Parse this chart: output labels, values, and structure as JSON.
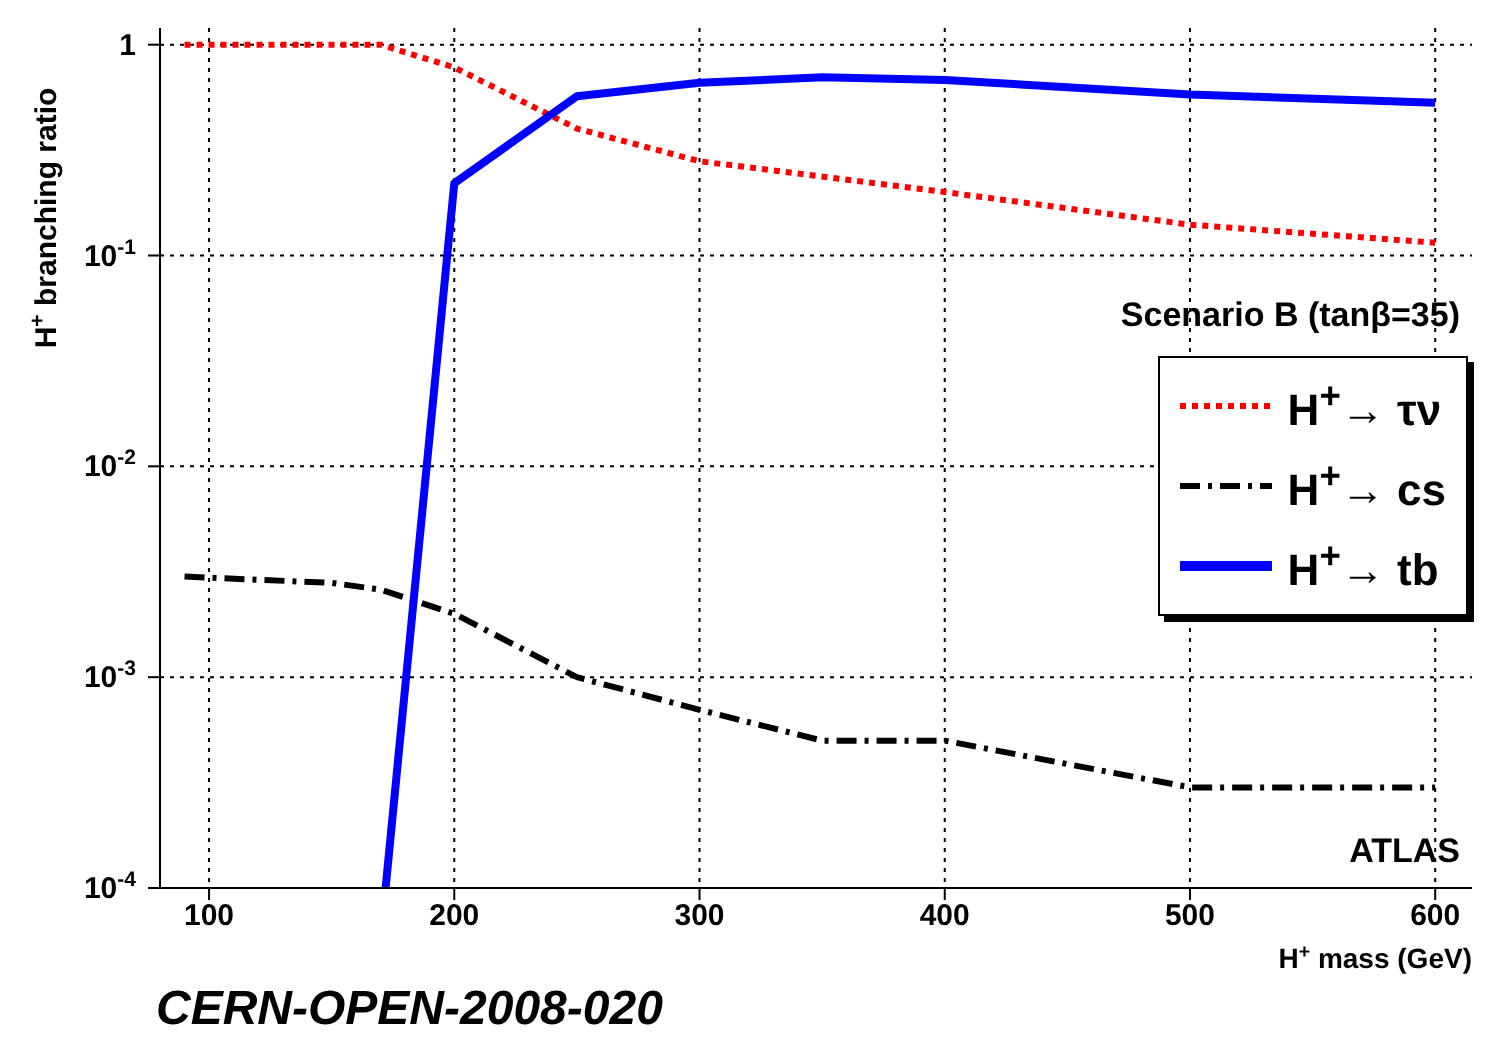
{
  "chart_data": {
    "type": "line",
    "xlabel": "H$^{+}$ mass (GeV)",
    "ylabel": "H$^{+}$ branching ratio",
    "log": "y",
    "grid": true,
    "legend": "right",
    "xlim": [
      80,
      615
    ],
    "xticks": [
      100,
      200,
      300,
      400,
      500,
      600
    ],
    "ylim": [
      0.0001,
      1.2
    ],
    "yticks": [
      {
        "value": 0.0001,
        "label": "10$^{-4}$"
      },
      {
        "value": 0.001,
        "label": "10$^{-3}$"
      },
      {
        "value": 0.01,
        "label": "10$^{-2}$"
      },
      {
        "value": 0.1,
        "label": "10$^{-1}$"
      },
      1
    ],
    "series": [
      {
        "name": "H$^{+}$→ τν",
        "color": "#ff0000",
        "line_style": "dotted",
        "x": [
          90,
          170,
          200,
          250,
          300,
          400,
          500,
          600
        ],
        "values": [
          1,
          1,
          0.78,
          0.4,
          0.28,
          0.2,
          0.14,
          0.115
        ]
      },
      {
        "name": "H$^{+}$→ cs",
        "color": "#000000",
        "line_style": "dashed",
        "x": [
          90,
          150,
          170,
          200,
          250,
          300,
          350,
          400,
          500,
          600
        ],
        "values": [
          0.003,
          0.0028,
          0.0026,
          0.002,
          0.001,
          0.0007,
          0.0005,
          0.0005,
          0.0003,
          0.0003
        ]
      },
      {
        "name": "H$^{+}$→ tb",
        "color": "#0000ff",
        "line_style": "solid",
        "x": [
          172,
          200,
          250,
          300,
          350,
          400,
          500,
          600
        ],
        "values": [
          0.0001,
          0.22,
          0.57,
          0.66,
          0.7,
          0.68,
          0.58,
          0.53
        ]
      }
    ],
    "annotations": [
      "Scenario B (tanβ=35)",
      "ATLAS",
      "CERN-OPEN-2008-020"
    ]
  }
}
